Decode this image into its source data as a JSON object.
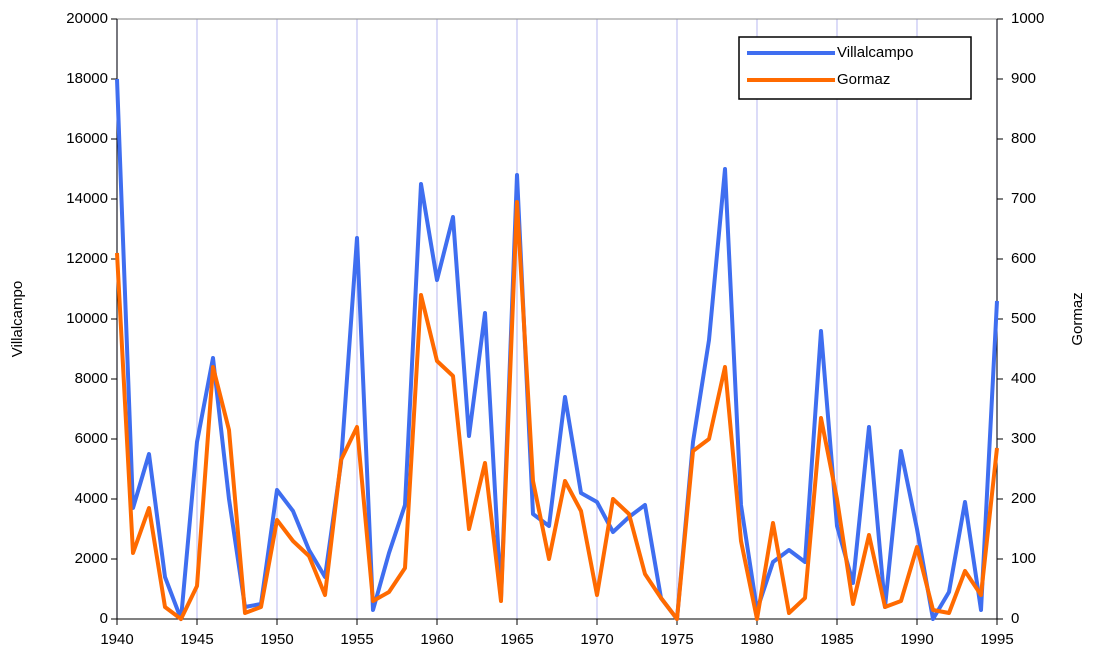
{
  "chart_data": {
    "type": "line",
    "x": [
      1940,
      1941,
      1942,
      1943,
      1944,
      1945,
      1946,
      1947,
      1948,
      1949,
      1950,
      1951,
      1952,
      1953,
      1954,
      1955,
      1956,
      1957,
      1958,
      1959,
      1960,
      1961,
      1962,
      1963,
      1964,
      1965,
      1966,
      1967,
      1968,
      1969,
      1970,
      1971,
      1972,
      1973,
      1974,
      1975,
      1976,
      1977,
      1978,
      1979,
      1980,
      1981,
      1982,
      1983,
      1984,
      1985,
      1986,
      1987,
      1988,
      1989,
      1990,
      1991,
      1992,
      1993,
      1994,
      1995
    ],
    "series": [
      {
        "name": "Villalcampo",
        "color": "#3f6ef0",
        "axis": "y",
        "values": [
          18000,
          3700,
          5500,
          1400,
          0,
          5900,
          8700,
          4000,
          400,
          500,
          4300,
          3600,
          2300,
          1400,
          5200,
          12700,
          300,
          2200,
          3800,
          14500,
          11300,
          13400,
          6100,
          10200,
          700,
          14800,
          3500,
          3100,
          7400,
          4200,
          3900,
          2900,
          3400,
          3800,
          700,
          0,
          5900,
          9300,
          15000,
          3800,
          300,
          1900,
          2300,
          1900,
          9600,
          3100,
          1200,
          6400,
          400,
          5600,
          3000,
          0,
          900,
          3900,
          300,
          10600
        ]
      },
      {
        "name": "Gormaz",
        "color": "#ff6a00",
        "axis": "y2",
        "values": [
          610,
          110,
          185,
          20,
          0,
          55,
          420,
          315,
          10,
          20,
          165,
          130,
          105,
          40,
          265,
          320,
          30,
          45,
          85,
          540,
          430,
          405,
          150,
          260,
          30,
          695,
          230,
          100,
          230,
          180,
          40,
          200,
          175,
          75,
          35,
          0,
          280,
          300,
          420,
          130,
          0,
          160,
          10,
          35,
          335,
          200,
          25,
          140,
          20,
          30,
          120,
          15,
          10,
          80,
          40,
          285
        ]
      }
    ],
    "xlim": [
      1940,
      1995
    ],
    "xticks": [
      1940,
      1945,
      1950,
      1955,
      1960,
      1965,
      1970,
      1975,
      1980,
      1985,
      1990,
      1995
    ],
    "ylim": [
      0,
      20000
    ],
    "yticks": [
      0,
      2000,
      4000,
      6000,
      8000,
      10000,
      12000,
      14000,
      16000,
      18000,
      20000
    ],
    "y2lim": [
      0,
      1000
    ],
    "y2ticks": [
      0,
      100,
      200,
      300,
      400,
      500,
      600,
      700,
      800,
      900,
      1000
    ],
    "ylabel": "Villalcampo",
    "y2label": "Gormaz",
    "grid": "x",
    "legend": "upper right"
  }
}
